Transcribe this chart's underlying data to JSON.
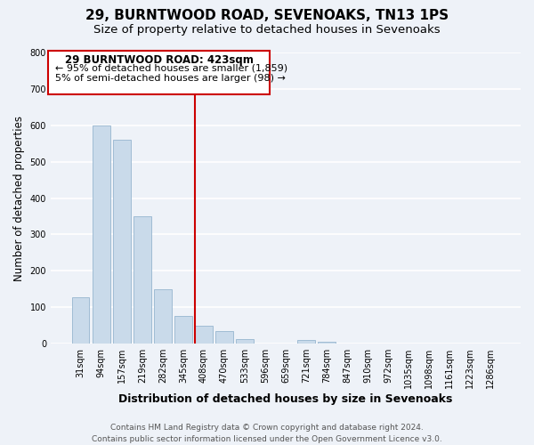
{
  "title": "29, BURNTWOOD ROAD, SEVENOAKS, TN13 1PS",
  "subtitle": "Size of property relative to detached houses in Sevenoaks",
  "xlabel": "Distribution of detached houses by size in Sevenoaks",
  "ylabel": "Number of detached properties",
  "bar_labels": [
    "31sqm",
    "94sqm",
    "157sqm",
    "219sqm",
    "282sqm",
    "345sqm",
    "408sqm",
    "470sqm",
    "533sqm",
    "596sqm",
    "659sqm",
    "721sqm",
    "784sqm",
    "847sqm",
    "910sqm",
    "972sqm",
    "1035sqm",
    "1098sqm",
    "1161sqm",
    "1223sqm",
    "1286sqm"
  ],
  "bar_values": [
    128,
    600,
    560,
    350,
    150,
    75,
    50,
    35,
    13,
    0,
    0,
    10,
    5,
    0,
    0,
    0,
    0,
    0,
    0,
    0,
    0
  ],
  "bar_color": "#c9daea",
  "bar_edge_color": "#a0bcd4",
  "vline_color": "#cc0000",
  "ylim": [
    0,
    800
  ],
  "yticks": [
    0,
    100,
    200,
    300,
    400,
    500,
    600,
    700,
    800
  ],
  "annotation_title": "29 BURNTWOOD ROAD: 423sqm",
  "annotation_line1": "← 95% of detached houses are smaller (1,859)",
  "annotation_line2": "5% of semi-detached houses are larger (98) →",
  "footer_line1": "Contains HM Land Registry data © Crown copyright and database right 2024.",
  "footer_line2": "Contains public sector information licensed under the Open Government Licence v3.0.",
  "bg_color": "#eef2f8",
  "grid_color": "#ffffff",
  "title_fontsize": 11,
  "subtitle_fontsize": 9.5,
  "xlabel_fontsize": 9,
  "ylabel_fontsize": 8.5,
  "tick_fontsize": 7,
  "footer_fontsize": 6.5,
  "annot_title_fontsize": 8.5,
  "annot_body_fontsize": 8
}
